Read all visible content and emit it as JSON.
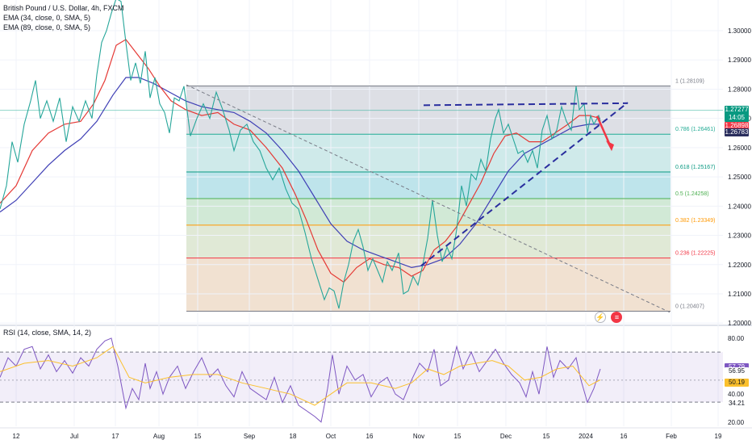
{
  "header": {
    "title": "British Pound / U.S. Dollar, 4h, FXCM",
    "ema34": "EMA (34, close, 0, SMA, 5)",
    "ema89": "EMA (89, close, 0, SMA, 5)",
    "rsi": "RSI (14, close, SMA, 14, 2)"
  },
  "icons": {
    "flash": "lightning-icon",
    "flag": "us-flag-icon",
    "flash_glyph": "⚡",
    "flag_glyph": "≡"
  },
  "chart_data": {
    "type": "line",
    "symbol": "GBPUSD",
    "timeframe": "4h",
    "x_tick_labels": [
      "12",
      "Jul",
      "17",
      "Aug",
      "15",
      "Sep",
      "18",
      "Oct",
      "16",
      "Nov",
      "15",
      "Dec",
      "15",
      "2024",
      "16",
      "Feb",
      "19"
    ],
    "price_axis": {
      "ticks": [
        1.2,
        1.21,
        1.22,
        1.23,
        1.24,
        1.25,
        1.26,
        1.27,
        1.28,
        1.29,
        1.3
      ],
      "tick_labels": [
        "1.20000",
        "1.21000",
        "1.22000",
        "1.23000",
        "1.24000",
        "1.25000",
        "1.26000",
        "1.27000",
        "1.28000",
        "1.29000",
        "1.30000"
      ],
      "range": [
        1.1995,
        1.3105
      ]
    },
    "price_labels": [
      {
        "label": "1.27277",
        "sub": "14:05",
        "value": 1.27277,
        "color": "#089981"
      },
      {
        "label": "1.26898",
        "value": 1.26898,
        "color": "#f23645"
      },
      {
        "label": "1.26783",
        "value": 1.26783,
        "color": "#2a2e5d"
      }
    ],
    "fib_levels": [
      {
        "label": "1 (1.28109)",
        "value": 1.28109,
        "line_color": "#787b86",
        "fill": "#d1d4dc"
      },
      {
        "label": "0.786 (1.26461)",
        "value": 1.26461,
        "line_color": "#22ab94",
        "fill": "#bfe3e3"
      },
      {
        "label": "0.618 (1.25167)",
        "value": 1.25167,
        "line_color": "#089981",
        "fill": "#a8dbe4"
      },
      {
        "label": "0.5 (1.24258)",
        "value": 1.24258,
        "line_color": "#4caf50",
        "fill": "#c2e1c8"
      },
      {
        "label": "0.382 (1.23349)",
        "value": 1.23349,
        "line_color": "#ff9800",
        "fill": "#d6e2c8"
      },
      {
        "label": "0.236 (1.22225)",
        "value": 1.22225,
        "line_color": "#f23645",
        "fill": "#ecd7c2"
      },
      {
        "label": "0 (1.20407)",
        "value": 1.20407,
        "line_color": "#787b86",
        "fill": "#ecc8cc"
      }
    ],
    "price_series": [
      [
        0,
        1.239
      ],
      [
        8,
        1.247
      ],
      [
        15,
        1.262
      ],
      [
        22,
        1.255
      ],
      [
        30,
        1.268
      ],
      [
        38,
        1.276
      ],
      [
        44,
        1.283
      ],
      [
        50,
        1.27
      ],
      [
        58,
        1.276
      ],
      [
        66,
        1.269
      ],
      [
        74,
        1.277
      ],
      [
        82,
        1.262
      ],
      [
        90,
        1.274
      ],
      [
        98,
        1.269
      ],
      [
        106,
        1.276
      ],
      [
        114,
        1.27
      ],
      [
        120,
        1.285
      ],
      [
        126,
        1.296
      ],
      [
        132,
        1.3
      ],
      [
        138,
        1.306
      ],
      [
        144,
        1.311
      ],
      [
        150,
        1.31
      ],
      [
        156,
        1.296
      ],
      [
        162,
        1.283
      ],
      [
        168,
        1.289
      ],
      [
        174,
        1.282
      ],
      [
        180,
        1.293
      ],
      [
        186,
        1.277
      ],
      [
        192,
        1.284
      ],
      [
        198,
        1.275
      ],
      [
        204,
        1.272
      ],
      [
        210,
        1.265
      ],
      [
        216,
        1.277
      ],
      [
        222,
        1.276
      ],
      [
        228,
        1.281
      ],
      [
        236,
        1.264
      ],
      [
        244,
        1.27
      ],
      [
        252,
        1.275
      ],
      [
        260,
        1.27
      ],
      [
        268,
        1.279
      ],
      [
        276,
        1.273
      ],
      [
        284,
        1.266
      ],
      [
        290,
        1.259
      ],
      [
        298,
        1.266
      ],
      [
        306,
        1.268
      ],
      [
        314,
        1.262
      ],
      [
        322,
        1.259
      ],
      [
        330,
        1.253
      ],
      [
        338,
        1.249
      ],
      [
        346,
        1.253
      ],
      [
        354,
        1.246
      ],
      [
        362,
        1.241
      ],
      [
        370,
        1.239
      ],
      [
        378,
        1.231
      ],
      [
        386,
        1.222
      ],
      [
        394,
        1.215
      ],
      [
        402,
        1.208
      ],
      [
        408,
        1.212
      ],
      [
        414,
        1.211
      ],
      [
        420,
        1.205
      ],
      [
        426,
        1.214
      ],
      [
        432,
        1.22
      ],
      [
        438,
        1.228
      ],
      [
        444,
        1.232
      ],
      [
        450,
        1.226
      ],
      [
        456,
        1.218
      ],
      [
        462,
        1.222
      ],
      [
        468,
        1.218
      ],
      [
        474,
        1.214
      ],
      [
        480,
        1.221
      ],
      [
        486,
        1.218
      ],
      [
        494,
        1.224
      ],
      [
        500,
        1.21
      ],
      [
        506,
        1.211
      ],
      [
        512,
        1.216
      ],
      [
        518,
        1.213
      ],
      [
        524,
        1.22
      ],
      [
        530,
        1.229
      ],
      [
        536,
        1.242
      ],
      [
        542,
        1.23
      ],
      [
        548,
        1.221
      ],
      [
        554,
        1.226
      ],
      [
        560,
        1.222
      ],
      [
        566,
        1.232
      ],
      [
        572,
        1.247
      ],
      [
        578,
        1.24
      ],
      [
        584,
        1.251
      ],
      [
        590,
        1.249
      ],
      [
        596,
        1.256
      ],
      [
        602,
        1.252
      ],
      [
        608,
        1.263
      ],
      [
        614,
        1.27
      ],
      [
        618,
        1.273
      ],
      [
        624,
        1.265
      ],
      [
        630,
        1.268
      ],
      [
        636,
        1.263
      ],
      [
        642,
        1.258
      ],
      [
        648,
        1.259
      ],
      [
        654,
        1.255
      ],
      [
        660,
        1.259
      ],
      [
        666,
        1.253
      ],
      [
        672,
        1.266
      ],
      [
        678,
        1.271
      ],
      [
        684,
        1.263
      ],
      [
        690,
        1.266
      ],
      [
        696,
        1.274
      ],
      [
        702,
        1.269
      ],
      [
        708,
        1.266
      ],
      [
        714,
        1.281
      ],
      [
        718,
        1.273
      ],
      [
        724,
        1.275
      ],
      [
        728,
        1.265
      ],
      [
        732,
        1.271
      ],
      [
        736,
        1.268
      ],
      [
        742,
        1.271
      ],
      [
        744,
        1.269
      ]
    ],
    "ema34_series": [
      [
        0,
        1.241
      ],
      [
        20,
        1.247
      ],
      [
        40,
        1.259
      ],
      [
        60,
        1.265
      ],
      [
        80,
        1.268
      ],
      [
        100,
        1.269
      ],
      [
        116,
        1.275
      ],
      [
        130,
        1.283
      ],
      [
        144,
        1.295
      ],
      [
        156,
        1.297
      ],
      [
        170,
        1.292
      ],
      [
        184,
        1.287
      ],
      [
        198,
        1.281
      ],
      [
        212,
        1.276
      ],
      [
        230,
        1.273
      ],
      [
        250,
        1.271
      ],
      [
        270,
        1.272
      ],
      [
        290,
        1.268
      ],
      [
        310,
        1.266
      ],
      [
        330,
        1.26
      ],
      [
        350,
        1.253
      ],
      [
        366,
        1.244
      ],
      [
        380,
        1.235
      ],
      [
        394,
        1.225
      ],
      [
        410,
        1.217
      ],
      [
        426,
        1.214
      ],
      [
        442,
        1.219
      ],
      [
        458,
        1.222
      ],
      [
        476,
        1.22
      ],
      [
        494,
        1.219
      ],
      [
        510,
        1.216
      ],
      [
        524,
        1.218
      ],
      [
        538,
        1.225
      ],
      [
        552,
        1.228
      ],
      [
        566,
        1.233
      ],
      [
        580,
        1.24
      ],
      [
        596,
        1.248
      ],
      [
        612,
        1.258
      ],
      [
        626,
        1.264
      ],
      [
        640,
        1.265
      ],
      [
        656,
        1.262
      ],
      [
        672,
        1.262
      ],
      [
        688,
        1.265
      ],
      [
        704,
        1.268
      ],
      [
        718,
        1.271
      ],
      [
        730,
        1.271
      ],
      [
        744,
        1.27
      ]
    ],
    "ema89_series": [
      [
        0,
        1.238
      ],
      [
        20,
        1.242
      ],
      [
        40,
        1.248
      ],
      [
        60,
        1.254
      ],
      [
        80,
        1.259
      ],
      [
        100,
        1.263
      ],
      [
        120,
        1.269
      ],
      [
        140,
        1.278
      ],
      [
        156,
        1.284
      ],
      [
        172,
        1.284
      ],
      [
        190,
        1.282
      ],
      [
        210,
        1.279
      ],
      [
        230,
        1.276
      ],
      [
        250,
        1.274
      ],
      [
        270,
        1.273
      ],
      [
        290,
        1.272
      ],
      [
        310,
        1.269
      ],
      [
        330,
        1.265
      ],
      [
        350,
        1.259
      ],
      [
        370,
        1.252
      ],
      [
        390,
        1.243
      ],
      [
        410,
        1.234
      ],
      [
        430,
        1.228
      ],
      [
        450,
        1.225
      ],
      [
        470,
        1.223
      ],
      [
        490,
        1.221
      ],
      [
        510,
        1.219
      ],
      [
        530,
        1.22
      ],
      [
        550,
        1.222
      ],
      [
        570,
        1.227
      ],
      [
        590,
        1.234
      ],
      [
        610,
        1.243
      ],
      [
        630,
        1.252
      ],
      [
        650,
        1.258
      ],
      [
        670,
        1.261
      ],
      [
        690,
        1.264
      ],
      [
        710,
        1.267
      ],
      [
        730,
        1.268
      ],
      [
        744,
        1.268
      ]
    ],
    "rsi_axis": {
      "ticks": [
        20,
        40,
        80
      ],
      "tick_labels": [
        "20.00",
        "40.00",
        "80.00"
      ],
      "range": [
        17,
        88
      ],
      "bands": [
        34.21,
        70
      ]
    },
    "rsi_labels": [
      {
        "label": "57.79",
        "value": 57.79,
        "color": "#7e57c2"
      },
      {
        "label": "56.95",
        "value": 56.95,
        "color": "#131722"
      },
      {
        "label": "50.19",
        "value": 50.19,
        "color": "#fbc02d"
      },
      {
        "label": "34.21",
        "value": 34.21,
        "color": "#131722"
      }
    ],
    "rsi_series": [
      [
        0,
        52
      ],
      [
        10,
        66
      ],
      [
        20,
        60
      ],
      [
        30,
        72
      ],
      [
        40,
        74
      ],
      [
        50,
        58
      ],
      [
        60,
        68
      ],
      [
        70,
        56
      ],
      [
        80,
        64
      ],
      [
        90,
        55
      ],
      [
        100,
        66
      ],
      [
        110,
        60
      ],
      [
        120,
        72
      ],
      [
        130,
        78
      ],
      [
        138,
        80
      ],
      [
        146,
        60
      ],
      [
        156,
        30
      ],
      [
        164,
        44
      ],
      [
        172,
        36
      ],
      [
        180,
        62
      ],
      [
        186,
        44
      ],
      [
        194,
        56
      ],
      [
        202,
        40
      ],
      [
        210,
        52
      ],
      [
        220,
        60
      ],
      [
        230,
        44
      ],
      [
        240,
        56
      ],
      [
        250,
        66
      ],
      [
        260,
        52
      ],
      [
        270,
        58
      ],
      [
        280,
        46
      ],
      [
        290,
        38
      ],
      [
        300,
        56
      ],
      [
        310,
        44
      ],
      [
        320,
        40
      ],
      [
        330,
        36
      ],
      [
        340,
        52
      ],
      [
        350,
        34
      ],
      [
        360,
        46
      ],
      [
        370,
        32
      ],
      [
        380,
        28
      ],
      [
        390,
        24
      ],
      [
        398,
        20
      ],
      [
        406,
        44
      ],
      [
        412,
        68
      ],
      [
        420,
        40
      ],
      [
        430,
        60
      ],
      [
        440,
        50
      ],
      [
        450,
        54
      ],
      [
        460,
        38
      ],
      [
        470,
        48
      ],
      [
        480,
        52
      ],
      [
        490,
        40
      ],
      [
        500,
        36
      ],
      [
        510,
        50
      ],
      [
        520,
        62
      ],
      [
        530,
        56
      ],
      [
        538,
        72
      ],
      [
        546,
        46
      ],
      [
        556,
        50
      ],
      [
        566,
        74
      ],
      [
        574,
        58
      ],
      [
        584,
        70
      ],
      [
        594,
        56
      ],
      [
        604,
        64
      ],
      [
        614,
        72
      ],
      [
        624,
        62
      ],
      [
        634,
        54
      ],
      [
        644,
        48
      ],
      [
        652,
        38
      ],
      [
        660,
        56
      ],
      [
        668,
        40
      ],
      [
        678,
        74
      ],
      [
        686,
        52
      ],
      [
        694,
        64
      ],
      [
        704,
        58
      ],
      [
        714,
        66
      ],
      [
        720,
        50
      ],
      [
        728,
        34
      ],
      [
        736,
        44
      ],
      [
        744,
        58
      ]
    ],
    "rsi_ma_series": [
      [
        0,
        56
      ],
      [
        30,
        62
      ],
      [
        60,
        64
      ],
      [
        90,
        60
      ],
      [
        120,
        66
      ],
      [
        140,
        74
      ],
      [
        160,
        52
      ],
      [
        180,
        48
      ],
      [
        210,
        52
      ],
      [
        240,
        54
      ],
      [
        270,
        54
      ],
      [
        300,
        48
      ],
      [
        330,
        44
      ],
      [
        360,
        40
      ],
      [
        390,
        32
      ],
      [
        410,
        40
      ],
      [
        430,
        48
      ],
      [
        460,
        48
      ],
      [
        490,
        44
      ],
      [
        510,
        48
      ],
      [
        530,
        58
      ],
      [
        550,
        54
      ],
      [
        570,
        60
      ],
      [
        590,
        62
      ],
      [
        610,
        64
      ],
      [
        630,
        60
      ],
      [
        650,
        50
      ],
      [
        670,
        52
      ],
      [
        690,
        58
      ],
      [
        710,
        60
      ],
      [
        730,
        46
      ],
      [
        744,
        50.19
      ]
    ],
    "trendlines": [
      {
        "type": "dashed",
        "color": "#2a2e9e",
        "from": [
          525,
          1.2745
        ],
        "to": [
          778,
          1.2752
        ]
      },
      {
        "type": "dashed",
        "color": "#2a2e9e",
        "from": [
          522,
          1.2196
        ],
        "to": [
          778,
          1.2754
        ]
      },
      {
        "type": "dashed",
        "color": "#787b86",
        "from": [
          231,
          1.2815
        ],
        "to": [
          830,
          1.2037
        ]
      }
    ],
    "forecast_arrow": {
      "color": "#f23645",
      "from": [
        740,
        1.2708
      ],
      "to": [
        757,
        1.2602
      ]
    }
  }
}
